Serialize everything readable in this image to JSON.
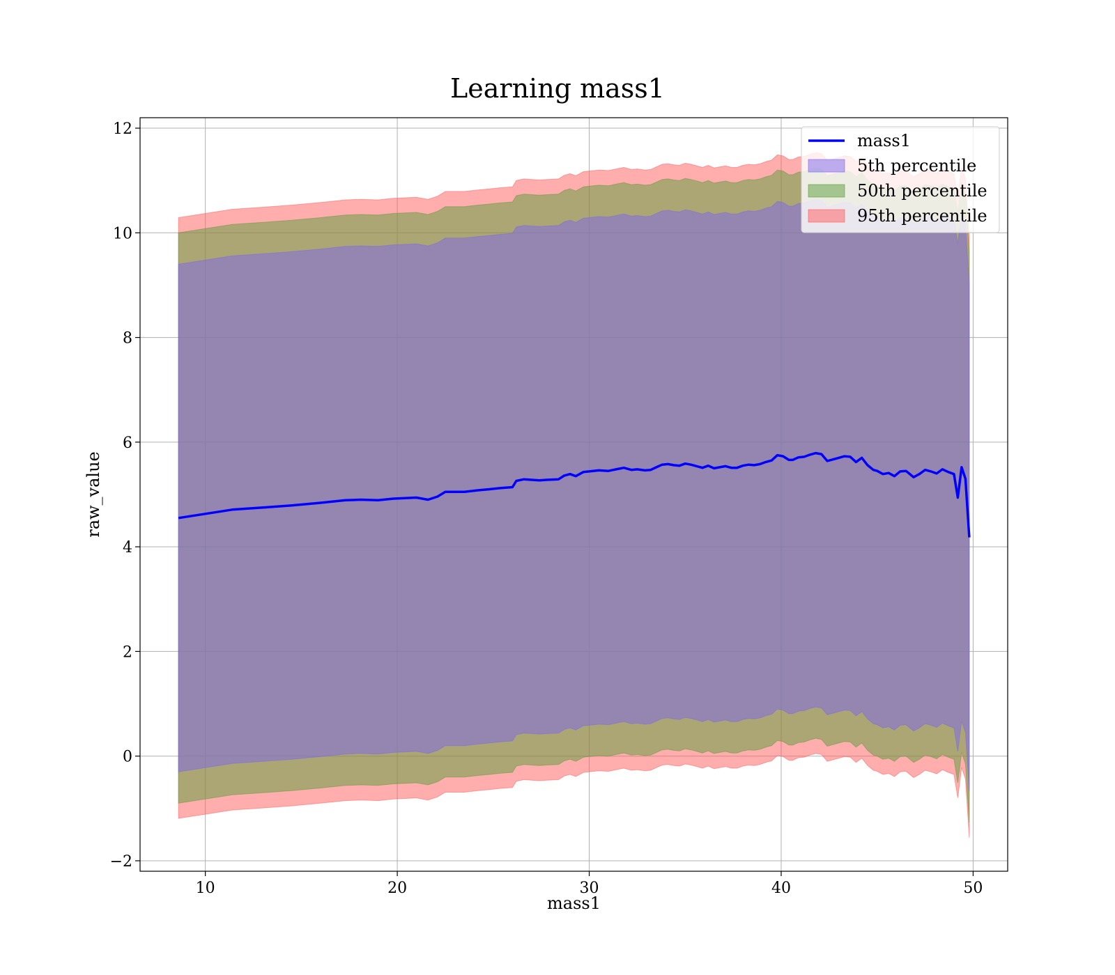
{
  "chart_data": {
    "type": "area",
    "title": "Learning mass1",
    "xlabel": "mass1",
    "ylabel": "raw_value",
    "xlim": [
      6.6,
      51.8
    ],
    "ylim": [
      -2.2,
      12.2
    ],
    "xticks": [
      10,
      20,
      30,
      40,
      50
    ],
    "xtick_labels": [
      "10",
      "20",
      "30",
      "40",
      "50"
    ],
    "yticks": [
      -2,
      0,
      2,
      4,
      6,
      8,
      10,
      12
    ],
    "ytick_labels": [
      "−2",
      "0",
      "2",
      "4",
      "6",
      "8",
      "10",
      "12"
    ],
    "grid": true,
    "legend_position": "upper right",
    "x": [
      8.6,
      10,
      11.4,
      13,
      14.5,
      16,
      17.3,
      18.1,
      19,
      19.8,
      21,
      21.6,
      22.1,
      22.5,
      23.5,
      24.2,
      24.8,
      25.3,
      26,
      26.2,
      26.6,
      27,
      27.4,
      27.8,
      28.4,
      28.7,
      29,
      29.3,
      29.7,
      30,
      30.5,
      31,
      31.4,
      31.8,
      32.2,
      32.5,
      32.9,
      33.2,
      33.5,
      33.8,
      34.1,
      34.4,
      34.7,
      35,
      35.3,
      35.6,
      35.9,
      36.2,
      36.5,
      36.8,
      37.1,
      37.4,
      37.7,
      38,
      38.3,
      38.6,
      38.9,
      39.2,
      39.5,
      39.8,
      40.1,
      40.4,
      40.6,
      40.9,
      41.2,
      41.5,
      41.8,
      42.1,
      42.4,
      42.7,
      43,
      43.3,
      43.6,
      43.9,
      44.2,
      44.5,
      44.8,
      45,
      45.3,
      45.6,
      45.9,
      46.2,
      46.5,
      46.6,
      46.9,
      47.2,
      47.5,
      47.8,
      48.1,
      48.4,
      48.7,
      49,
      49.2,
      49.4,
      49.6,
      49.8
    ],
    "series": [
      {
        "name": "mass1",
        "color": "#0000ff",
        "values": [
          4.55,
          4.63,
          4.71,
          4.75,
          4.79,
          4.84,
          4.89,
          4.9,
          4.89,
          4.92,
          4.94,
          4.9,
          4.96,
          5.05,
          5.05,
          5.08,
          5.1,
          5.12,
          5.14,
          5.26,
          5.29,
          5.28,
          5.27,
          5.28,
          5.29,
          5.36,
          5.39,
          5.35,
          5.43,
          5.44,
          5.46,
          5.45,
          5.48,
          5.51,
          5.47,
          5.48,
          5.46,
          5.47,
          5.52,
          5.57,
          5.58,
          5.56,
          5.55,
          5.59,
          5.57,
          5.54,
          5.51,
          5.55,
          5.5,
          5.52,
          5.54,
          5.51,
          5.51,
          5.55,
          5.57,
          5.56,
          5.58,
          5.62,
          5.65,
          5.75,
          5.73,
          5.66,
          5.66,
          5.71,
          5.72,
          5.76,
          5.79,
          5.77,
          5.64,
          5.67,
          5.7,
          5.73,
          5.72,
          5.62,
          5.7,
          5.56,
          5.47,
          5.45,
          5.39,
          5.41,
          5.35,
          5.44,
          5.45,
          5.42,
          5.33,
          5.39,
          5.47,
          5.44,
          5.4,
          5.48,
          5.43,
          5.39,
          4.94,
          5.52,
          5.3,
          4.18
        ]
      }
    ],
    "bands": [
      {
        "name": "5th percentile",
        "color": "#7b68ee",
        "half_width": 4.85
      },
      {
        "name": "50th percentile",
        "color": "#5a9e3c",
        "half_width": 5.45
      },
      {
        "name": "95th percentile",
        "color": "#ff5c5c",
        "half_width": 5.74
      }
    ]
  }
}
